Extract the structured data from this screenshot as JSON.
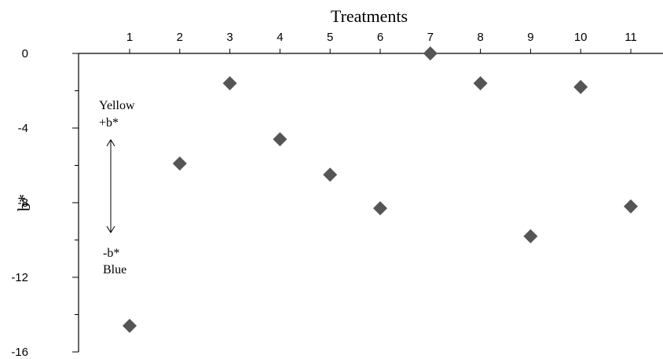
{
  "chart_data": {
    "type": "scatter",
    "title": "",
    "xlabel": "Treatments",
    "ylabel": "b*",
    "x": [
      1,
      2,
      3,
      4,
      5,
      6,
      7,
      8,
      9,
      10,
      11
    ],
    "y": [
      -14.6,
      -5.9,
      -1.6,
      -4.6,
      -6.5,
      -8.3,
      0.0,
      -1.6,
      -9.8,
      -1.8,
      -8.2
    ],
    "xticks": [
      "1",
      "2",
      "3",
      "4",
      "5",
      "6",
      "7",
      "8",
      "9",
      "10",
      "11"
    ],
    "yticks": [
      "0",
      "-4",
      "-8",
      "-12",
      "-16"
    ],
    "ylim": [
      -16,
      0
    ],
    "xlim": [
      0,
      11.5
    ],
    "grid": false,
    "marker": "diamond",
    "marker_color": "#555555",
    "annotation": {
      "top_line1": "Yellow",
      "top_line2": "+b*",
      "bottom_line1": "-b*",
      "bottom_line2": "Blue"
    }
  }
}
